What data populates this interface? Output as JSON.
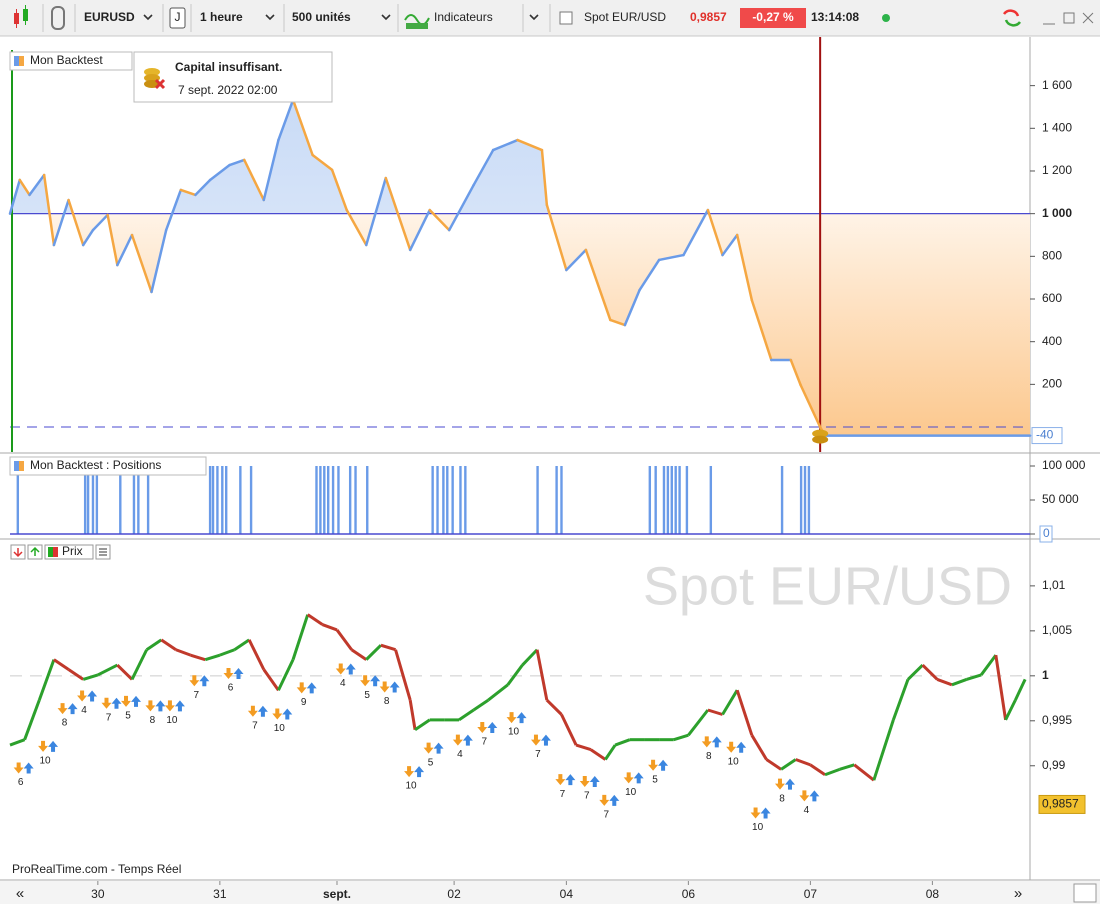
{
  "toolbar": {
    "symbol": "EURUSD",
    "mode": "J",
    "period": "1 heure",
    "units": "500 unités",
    "indicators": "Indicateurs",
    "spot_label": "Spot EUR/USD",
    "spot_price": "0,9857",
    "change": "-0,27 %",
    "time": "13:14:08"
  },
  "xaxis": {
    "xlim": [
      0,
      209
    ],
    "xticks": [
      {
        "value": 18,
        "label": "30"
      },
      {
        "value": 43,
        "label": "31"
      },
      {
        "value": 67,
        "label": "sept."
      },
      {
        "value": 91,
        "label": "02"
      },
      {
        "value": 114,
        "label": "04"
      },
      {
        "value": 139,
        "label": "06"
      },
      {
        "value": 164,
        "label": "07"
      },
      {
        "value": 189,
        "label": "08"
      }
    ],
    "nav": [
      "«",
      "»"
    ]
  },
  "equity": {
    "type": "line",
    "title": "Mon Backtest",
    "x": [
      0,
      2,
      4,
      7,
      9,
      12,
      15,
      17,
      20,
      22,
      25,
      29,
      32,
      35,
      38,
      41,
      45,
      48,
      52,
      55,
      58,
      62,
      66,
      69,
      73,
      77,
      82,
      86,
      90,
      95,
      99,
      104,
      109,
      110,
      114,
      118,
      123,
      126,
      129,
      133,
      138,
      143,
      146,
      149,
      152,
      156,
      160,
      162,
      166,
      167,
      209
    ],
    "values": [
      1000,
      1158,
      1088,
      1181,
      853,
      1064,
      853,
      923,
      994,
      759,
      900,
      633,
      923,
      1111,
      1088,
      1158,
      1228,
      1252,
      1064,
      1345,
      1533,
      1275,
      1205,
      1017,
      853,
      1167,
      830,
      1017,
      923,
      1134,
      1298,
      1345,
      1298,
      1041,
      736,
      830,
      502,
      478,
      642,
      783,
      806,
      1017,
      806,
      900,
      595,
      314,
      314,
      197,
      0,
      -40,
      -40
    ],
    "rise_color": "#6a9be8",
    "fall_color": "#f5a742",
    "baseline": 1000,
    "reference": 0,
    "ylim": [
      -117,
      1767
    ],
    "yticks": [
      {
        "value": 1600,
        "label": "1 600"
      },
      {
        "value": 1400,
        "label": "1 400"
      },
      {
        "value": 1200,
        "label": "1 200"
      },
      {
        "value": 1000,
        "label": "1 000"
      },
      800,
      600,
      400,
      200
    ],
    "event": {
      "x": 166,
      "title": "Capital insuffisant.",
      "date": "7 sept. 2022 02:00"
    }
  },
  "positions": {
    "type": "bar",
    "title": "Mon Backtest : Positions",
    "color": "#6a9be8",
    "x": [
      1.6,
      15.4,
      16,
      17,
      17.8,
      22.6,
      25.4,
      26.3,
      28.3,
      41,
      41.6,
      42.5,
      43.5,
      44.3,
      47.2,
      49.4,
      62.8,
      63.6,
      64.4,
      65.2,
      66.2,
      67.3,
      69.7,
      70.8,
      73.2,
      86.6,
      87.6,
      88.8,
      89.6,
      90.7,
      92.3,
      93.3,
      108.1,
      112,
      113,
      131.1,
      132.3,
      134,
      134.8,
      135.6,
      136.4,
      137.2,
      138.7,
      143.6,
      158.2,
      162.1,
      162.9,
      163.7
    ],
    "values": [
      100000,
      100000,
      100000,
      100000,
      100000,
      100000,
      100000,
      100000,
      100000,
      100000,
      100000,
      100000,
      100000,
      100000,
      100000,
      100000,
      100000,
      100000,
      100000,
      100000,
      100000,
      100000,
      100000,
      100000,
      100000,
      100000,
      100000,
      100000,
      100000,
      100000,
      100000,
      100000,
      100000,
      100000,
      100000,
      100000,
      100000,
      100000,
      100000,
      100000,
      100000,
      100000,
      100000,
      100000,
      100000,
      100000,
      100000,
      100000
    ],
    "ylim": [
      -5882,
      116176
    ],
    "yticks": [
      {
        "value": 100000,
        "label": "100 000"
      },
      {
        "value": 50000,
        "label": "50 000"
      },
      0
    ]
  },
  "price": {
    "type": "line",
    "title": "Prix",
    "watermark": "Spot EUR/USD",
    "footer": "ProRealTime.com - Temps Réel",
    "up_color": "#2ca02c",
    "down_color": "#c0392b",
    "reference": 1,
    "x": [
      0,
      3,
      6,
      9,
      12,
      15,
      18,
      22,
      25,
      28,
      31,
      34,
      37,
      40,
      43,
      46,
      49,
      52,
      55,
      58,
      61,
      64,
      67,
      70,
      73,
      76,
      79,
      82,
      83,
      86,
      89,
      92,
      95,
      98,
      102,
      105,
      108,
      110,
      113,
      116,
      119,
      122,
      124,
      127,
      130,
      133,
      136,
      139,
      143,
      146,
      149,
      152,
      155,
      158,
      161,
      164,
      167,
      170,
      173,
      177,
      181,
      184,
      187,
      190,
      193,
      196,
      199,
      202,
      204,
      206,
      208
    ],
    "values": [
      0.9923,
      0.9929,
      0.9973,
      1.0018,
      1.0007,
      0.9996,
      1.0001,
      1.0012,
      0.9996,
      1.0029,
      1.004,
      1.0029,
      1.0023,
      1.0018,
      1.0023,
      1.0029,
      1.004,
      1.0007,
      0.9984,
      1.0018,
      1.0068,
      1.0057,
      1.0051,
      1.0029,
      1.0018,
      1.0034,
      1.0029,
      0.9973,
      0.994,
      0.9951,
      0.9951,
      0.9951,
      0.9962,
      0.9973,
      0.999,
      1.0012,
      1.0029,
      0.9973,
      0.9957,
      0.9923,
      0.9918,
      0.9907,
      0.9923,
      0.9929,
      0.9929,
      0.9929,
      0.9929,
      0.9934,
      0.9962,
      0.9957,
      0.9984,
      0.9934,
      0.9907,
      0.9896,
      0.9907,
      0.9901,
      0.989,
      0.9896,
      0.9901,
      0.9884,
      0.9951,
      0.9996,
      1.0012,
      0.9996,
      0.999,
      0.9996,
      1.0001,
      1.0023,
      0.9951,
      0.9973,
      0.9996
    ],
    "current": {
      "value": 0.9857,
      "label": "0,9857"
    },
    "ylim": [
      0.9773,
      1.0151
    ],
    "yticks": [
      {
        "value": 1.01,
        "label": "1,01"
      },
      {
        "value": 1.005,
        "label": "1,005"
      },
      1,
      {
        "value": 0.995,
        "label": "0,995"
      },
      {
        "value": 0.99,
        "label": "0,99"
      }
    ],
    "trades": {
      "x": [
        3,
        8,
        12,
        16,
        21,
        25,
        30,
        34,
        39,
        46,
        51,
        56,
        61,
        69,
        74,
        78,
        83,
        87,
        93,
        98,
        104,
        109,
        114,
        119,
        123,
        128,
        133,
        144,
        149,
        154,
        159,
        164
      ],
      "y": [
        0.9897,
        0.9921,
        0.9963,
        0.9977,
        0.9969,
        0.9971,
        0.9966,
        0.9966,
        0.9994,
        1.0002,
        0.996,
        0.9957,
        0.9986,
        1.0007,
        0.9994,
        0.9987,
        0.9893,
        0.9919,
        0.9928,
        0.9942,
        0.9953,
        0.9928,
        0.9884,
        0.9882,
        0.9861,
        0.9886,
        0.99,
        0.9926,
        0.992,
        0.9847,
        0.9879,
        0.9866
      ],
      "labels": [
        6,
        10,
        8,
        4,
        7,
        5,
        8,
        10,
        7,
        6,
        7,
        10,
        9,
        4,
        5,
        8,
        10,
        5,
        4,
        7,
        10,
        7,
        7,
        7,
        7,
        10,
        5,
        8,
        10,
        10,
        8,
        4
      ]
    }
  }
}
